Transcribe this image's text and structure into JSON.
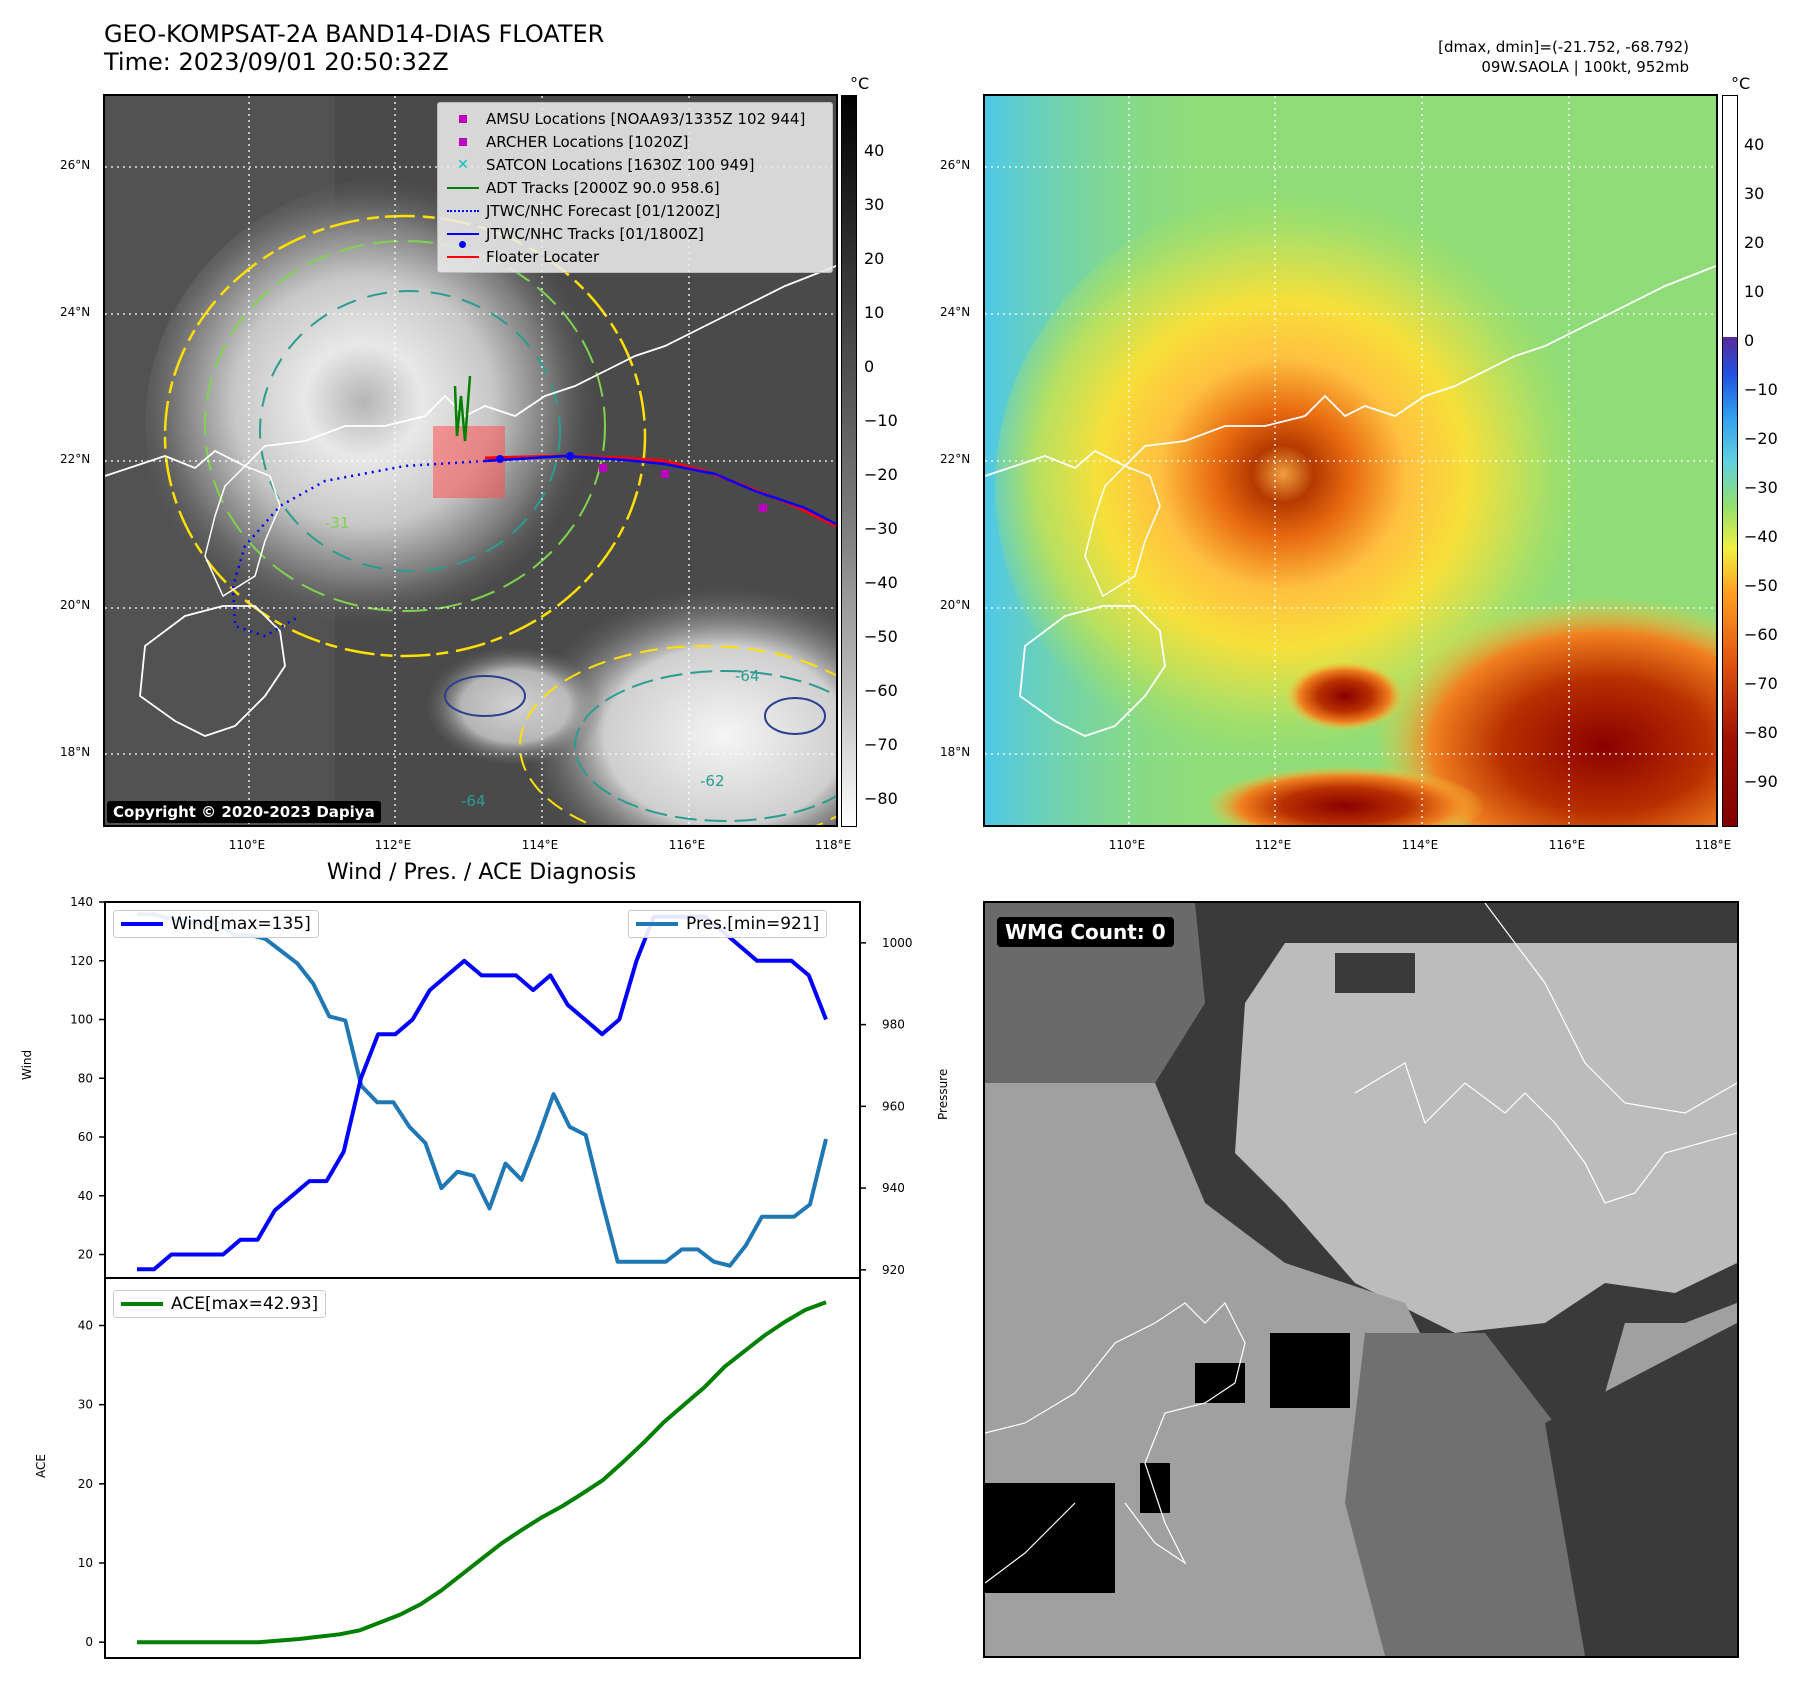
{
  "header": {
    "title_line1": "GEO-KOMPSAT-2A BAND14-DIAS FLOATER",
    "title_line2": "Time: 2023/09/01 20:50:32Z",
    "right_line1": "[dmax, dmin]=(-21.752, -68.792)",
    "right_line2": "09W.SAOLA | 100kt, 952mb"
  },
  "map": {
    "lat_labels": [
      "26°N",
      "24°N",
      "22°N",
      "20°N",
      "18°N"
    ],
    "lon_labels": [
      "110°E",
      "112°E",
      "114°E",
      "116°E",
      "118°E"
    ],
    "copyright": "Copyright © 2020-2023 Dapiya",
    "contour_labels": [
      "-31",
      "-64",
      "-64",
      "-62"
    ],
    "legend": [
      {
        "label": "AMSU Locations [NOAA93/1335Z 102 944]",
        "symbol": "square",
        "color": "#bf00bf"
      },
      {
        "label": "ARCHER Locations [1020Z]",
        "symbol": "square",
        "color": "#bf00bf"
      },
      {
        "label": "SATCON Locations [1630Z 100 949]",
        "symbol": "x",
        "color": "#00bfbf"
      },
      {
        "label": "ADT Tracks [2000Z 90.0 958.6]",
        "symbol": "line",
        "color": "#008000"
      },
      {
        "label": "JTWC/NHC Forecast [01/1200Z]",
        "symbol": "dotted",
        "color": "#0000ff"
      },
      {
        "label": "JTWC/NHC Tracks [01/1800Z]",
        "symbol": "line-dot",
        "color": "#0000ff"
      },
      {
        "label": "Floater Locater",
        "symbol": "line",
        "color": "#ff0000"
      }
    ]
  },
  "colorbar_left": {
    "unit": "°C",
    "ticks": [
      "40",
      "30",
      "20",
      "10",
      "0",
      "−10",
      "−20",
      "−30",
      "−40",
      "−50",
      "−60",
      "−70",
      "−80"
    ]
  },
  "colorbar_right": {
    "unit": "°C",
    "ticks": [
      "40",
      "30",
      "20",
      "10",
      "0",
      "−10",
      "−20",
      "−30",
      "−40",
      "−50",
      "−60",
      "−70",
      "−80",
      "−90"
    ]
  },
  "wmg_panel": {
    "label": "WMG Count: 0"
  },
  "chart_data": [
    {
      "type": "line",
      "title": "Wind / Pres. / ACE Diagnosis",
      "ylabel": "Wind",
      "ylabel_right": "Pressure",
      "ylim": [
        12,
        140
      ],
      "ylim_right": [
        918,
        1010
      ],
      "yticks": [
        20,
        40,
        60,
        80,
        100,
        120,
        140
      ],
      "yticks_right": [
        920,
        940,
        960,
        980,
        1000
      ],
      "series": [
        {
          "name": "Wind[max=135]",
          "color": "#0000ff",
          "values": [
            15,
            15,
            20,
            20,
            20,
            20,
            25,
            25,
            35,
            40,
            45,
            45,
            55,
            80,
            95,
            95,
            100,
            110,
            115,
            120,
            115,
            115,
            115,
            110,
            115,
            105,
            100,
            95,
            100,
            120,
            135,
            135,
            135,
            135,
            130,
            125,
            120,
            120,
            120,
            115,
            100
          ]
        },
        {
          "name": "Pres.[min=921]",
          "color": "#1f77b4",
          "values": [
            1007,
            1007,
            1006,
            1005,
            1005,
            1005,
            1002,
            1002,
            1001,
            998,
            995,
            990,
            982,
            981,
            965,
            961,
            961,
            955,
            951,
            940,
            944,
            943,
            935,
            946,
            942,
            952,
            963,
            955,
            953,
            937,
            922,
            922,
            922,
            922,
            925,
            925,
            922,
            921,
            926,
            933,
            933,
            933,
            936,
            952
          ]
        }
      ]
    },
    {
      "type": "line",
      "ylabel": "ACE",
      "ylim": [
        -2,
        46
      ],
      "yticks": [
        0,
        10,
        20,
        30,
        40
      ],
      "series": [
        {
          "name": "ACE[max=42.93]",
          "color": "#008000",
          "values": [
            0,
            0,
            0,
            0,
            0,
            0,
            0,
            0.2,
            0.4,
            0.7,
            1.0,
            1.5,
            2.5,
            3.5,
            4.8,
            6.5,
            8.5,
            10.5,
            12.5,
            14.2,
            15.8,
            17.2,
            18.8,
            20.5,
            22.8,
            25.2,
            27.8,
            30.0,
            32.2,
            34.8,
            36.8,
            38.8,
            40.5,
            42.0,
            42.93
          ]
        }
      ]
    }
  ]
}
